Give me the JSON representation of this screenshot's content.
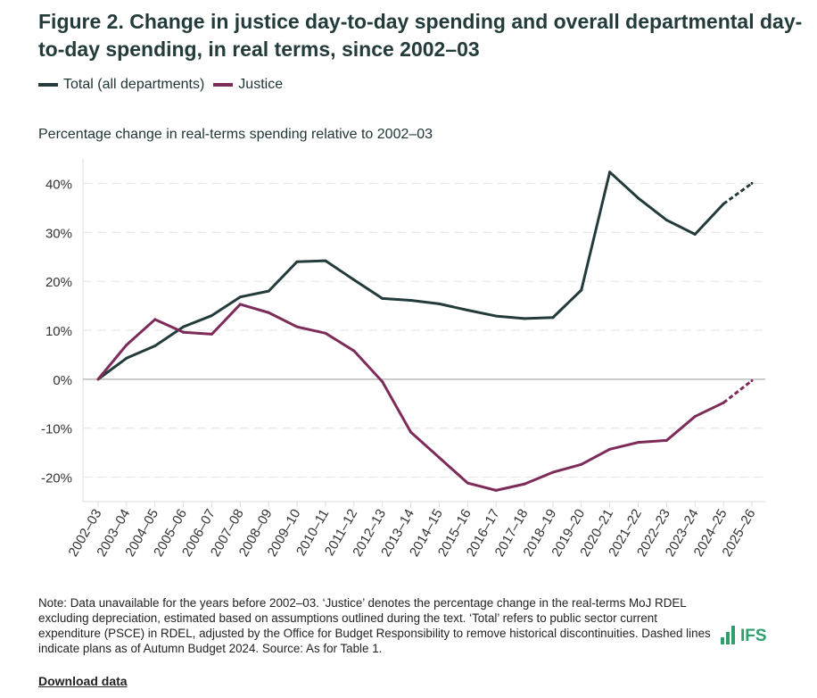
{
  "title": "Figure 2. Change in justice day-to-day spending and overall departmental day-to-day spending, in real terms, since 2002–03",
  "legend": [
    {
      "label": "Total (all departments)",
      "color": "#233b3b"
    },
    {
      "label": "Justice",
      "color": "#7d2c5a"
    }
  ],
  "note": "Note: Data unavailable for the years before 2002–03. ‘Justice’ denotes the percentage change in the real-terms MoJ RDEL excluding depreciation, estimated based on assumptions outlined during the text. ‘Total’ refers to public sector current expenditure (PSCE) in RDEL, adjusted by the Office for Budget Responsibility to remove historical discontinuities. Dashed lines indicate plans as of Autumn Budget 2024. Source: As for Table 1.",
  "download_label": "Download data",
  "logo_text": "IFS",
  "chart_data": {
    "type": "line",
    "title": "Figure 2. Change in justice day-to-day spending and overall departmental day-to-day spending, in real terms, since 2002–03",
    "ylabel": "Percentage change in real-terms spending relative to 2002–03",
    "xlabel": "",
    "ylim": [
      -25,
      45
    ],
    "yticks": [
      -20,
      -10,
      0,
      10,
      20,
      30,
      40
    ],
    "ytick_labels": [
      "-20%",
      "-10%",
      "0%",
      "10%",
      "20%",
      "30%",
      "40%"
    ],
    "grid": true,
    "legend_position": "top-left",
    "dashed_from_index": 22,
    "categories": [
      "2002–03",
      "2003–04",
      "2004–05",
      "2005–06",
      "2006–07",
      "2007–08",
      "2008–09",
      "2009–10",
      "2010–11",
      "2011–12",
      "2012–13",
      "2013–14",
      "2014–15",
      "2015–16",
      "2016–17",
      "2017–18",
      "2018–19",
      "2019–20",
      "2020–21",
      "2021–22",
      "2022–23",
      "2023–24",
      "2024–25",
      "2025–26"
    ],
    "series": [
      {
        "name": "Total (all departments)",
        "color": "#233b3b",
        "values": [
          0,
          4.3,
          6.8,
          10.7,
          13.0,
          16.8,
          18.0,
          24.0,
          24.2,
          20.3,
          16.5,
          16.1,
          15.4,
          14.1,
          12.9,
          12.4,
          12.6,
          18.2,
          42.3,
          37.0,
          32.5,
          29.6,
          35.8,
          40.0
        ]
      },
      {
        "name": "Justice",
        "color": "#7d2c5a",
        "values": [
          0,
          7.0,
          12.2,
          9.6,
          9.2,
          15.3,
          13.6,
          10.7,
          9.4,
          5.8,
          -0.5,
          -10.8,
          -16.0,
          -21.2,
          -22.7,
          -21.4,
          -19.0,
          -17.4,
          -14.3,
          -12.9,
          -12.5,
          -7.6,
          -4.8,
          -0.3
        ]
      }
    ]
  }
}
